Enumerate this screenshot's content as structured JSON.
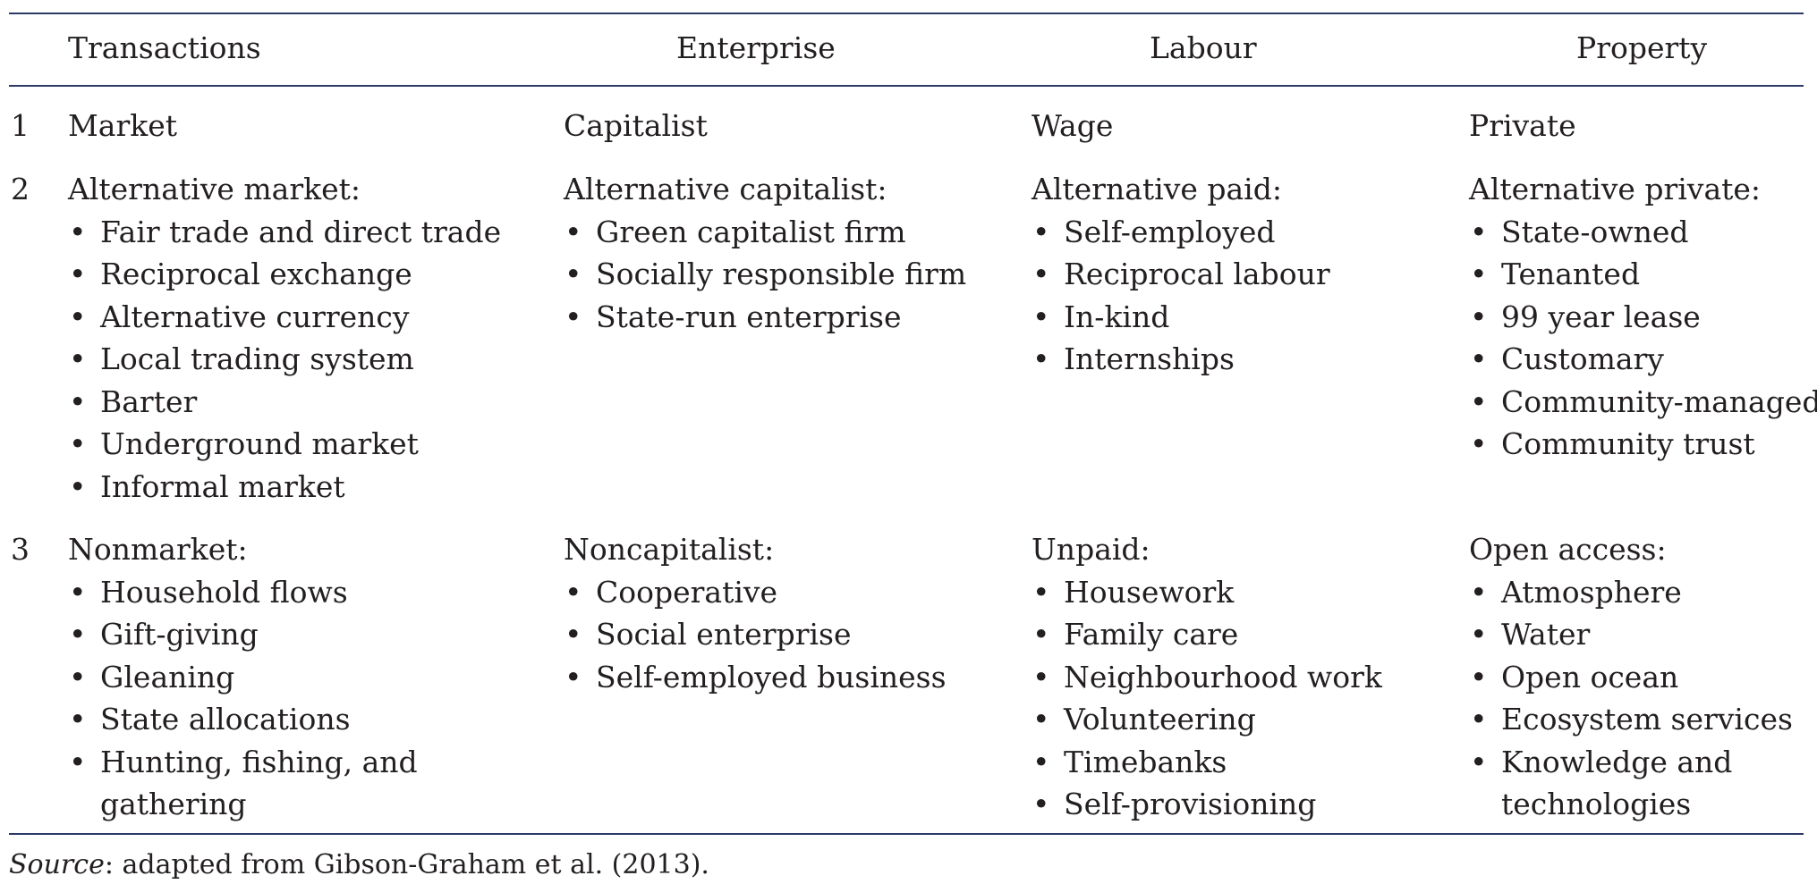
{
  "table": {
    "headers": {
      "transactions": "Transactions",
      "enterprise": "Enterprise",
      "labour": "Labour",
      "property": "Property"
    },
    "rows": [
      {
        "number": "1",
        "transactions": {
          "heading": "Market",
          "items": []
        },
        "enterprise": {
          "heading": "Capitalist",
          "items": []
        },
        "labour": {
          "heading": "Wage",
          "items": []
        },
        "property": {
          "heading": "Private",
          "items": []
        }
      },
      {
        "number": "2",
        "transactions": {
          "heading": "Alternative market:",
          "items": [
            "Fair trade and direct trade",
            "Reciprocal exchange",
            "Alternative currency",
            "Local trading system",
            "Barter",
            "Underground market",
            "Informal market"
          ]
        },
        "enterprise": {
          "heading": "Alternative capitalist:",
          "items": [
            "Green capitalist firm",
            "Socially responsible firm",
            "State-run enterprise"
          ]
        },
        "labour": {
          "heading": "Alternative paid:",
          "items": [
            "Self-employed",
            "Reciprocal labour",
            "In-kind",
            "Internships"
          ]
        },
        "property": {
          "heading": "Alternative private:",
          "items": [
            "State-owned",
            "Tenanted",
            "99 year lease",
            "Customary",
            "Community-managed",
            "Community trust"
          ]
        }
      },
      {
        "number": "3",
        "transactions": {
          "heading": "Nonmarket:",
          "items": [
            "Household flows",
            "Gift-giving",
            "Gleaning",
            "State allocations",
            "Hunting, fishing, and\ngathering"
          ]
        },
        "enterprise": {
          "heading": "Noncapitalist:",
          "items": [
            "Cooperative",
            "Social enterprise",
            "Self-employed business"
          ]
        },
        "labour": {
          "heading": "Unpaid:",
          "items": [
            "Housework",
            "Family care",
            "Neighbourhood work",
            "Volunteering",
            "Timebanks",
            "Self-provisioning"
          ]
        },
        "property": {
          "heading": "Open access:",
          "items": [
            "Atmosphere",
            "Water",
            "Open ocean",
            "Ecosystem services",
            "Knowledge and\ntechnologies"
          ]
        }
      }
    ]
  },
  "source": {
    "label": "Source",
    "text": ": adapted from Gibson-Graham et al. (2013)."
  }
}
